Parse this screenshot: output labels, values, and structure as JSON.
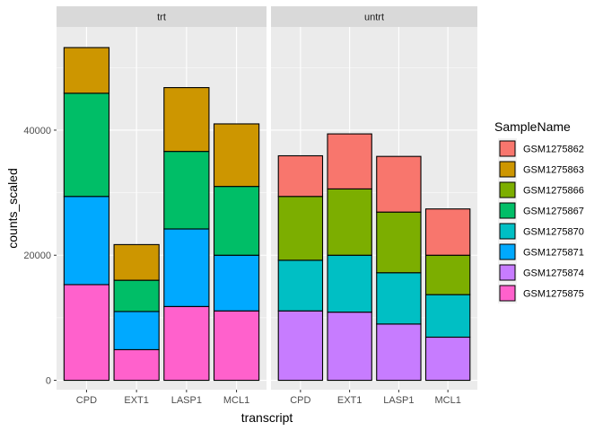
{
  "chart_data": {
    "type": "bar",
    "stacked": true,
    "xlabel": "transcript",
    "ylabel": "counts_scaled",
    "ylim": [
      -1500,
      56500
    ],
    "yticks": [
      0,
      20000,
      40000
    ],
    "ytick_labels": [
      "0",
      "20000",
      "40000"
    ],
    "legend": {
      "title": "SampleName",
      "placement": "right",
      "entries": [
        {
          "name": "GSM1275862",
          "color": "#F8766D"
        },
        {
          "name": "GSM1275863",
          "color": "#CD9600"
        },
        {
          "name": "GSM1275866",
          "color": "#7CAE00"
        },
        {
          "name": "GSM1275867",
          "color": "#00BE67"
        },
        {
          "name": "GSM1275870",
          "color": "#00BFC4"
        },
        {
          "name": "GSM1275871",
          "color": "#00A9FF"
        },
        {
          "name": "GSM1275874",
          "color": "#C77CFF"
        },
        {
          "name": "GSM1275875",
          "color": "#FF61CC"
        }
      ]
    },
    "panels": [
      {
        "label": "trt",
        "categories": [
          "CPD",
          "EXT1",
          "LASP1",
          "MCL1"
        ],
        "series": [
          {
            "name": "GSM1275875",
            "values": [
              15300,
              4900,
              11800,
              11100
            ]
          },
          {
            "name": "GSM1275871",
            "values": [
              14100,
              6100,
              12400,
              8900
            ]
          },
          {
            "name": "GSM1275867",
            "values": [
              16500,
              5000,
              12400,
              11000
            ]
          },
          {
            "name": "GSM1275863",
            "values": [
              7300,
              5700,
              10200,
              10000
            ]
          }
        ]
      },
      {
        "label": "untrt",
        "categories": [
          "CPD",
          "EXT1",
          "LASP1",
          "MCL1"
        ],
        "series": [
          {
            "name": "GSM1275874",
            "values": [
              11100,
              10900,
              9000,
              6900
            ]
          },
          {
            "name": "GSM1275870",
            "values": [
              8100,
              9100,
              8200,
              6800
            ]
          },
          {
            "name": "GSM1275866",
            "values": [
              10200,
              10600,
              9700,
              6300
            ]
          },
          {
            "name": "GSM1275862",
            "values": [
              6500,
              8800,
              8900,
              7400
            ]
          }
        ]
      }
    ]
  }
}
